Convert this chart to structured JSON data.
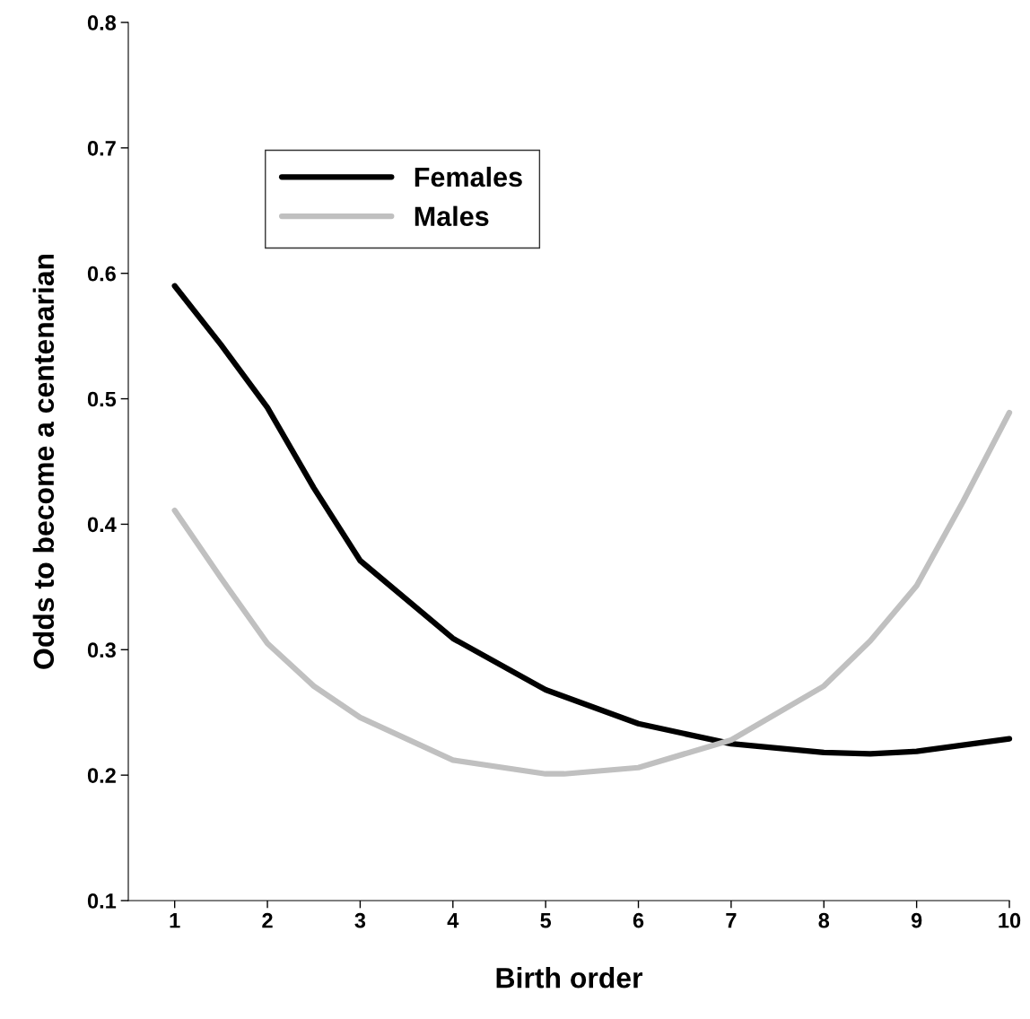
{
  "chart_data": {
    "type": "line",
    "xlabel": "Birth order",
    "ylabel": "Odds to become a centenarian",
    "xlim": [
      0.5,
      10
    ],
    "xticks": [
      1,
      2,
      3,
      4,
      5,
      6,
      7,
      8,
      9,
      10
    ],
    "ylim": [
      0.1,
      0.8
    ],
    "yticks": [
      0.1,
      0.2,
      0.3,
      0.4,
      0.5,
      0.6,
      0.7,
      0.8
    ],
    "grid": false,
    "legend": "top left",
    "marker": "none",
    "line_style": "solid",
    "series": [
      {
        "name": "Females",
        "color": "#000000",
        "x": [
          1,
          1.5,
          2,
          2.5,
          3,
          4,
          5,
          6,
          7,
          8,
          8.5,
          9,
          10
        ],
        "values": [
          0.59,
          0.543,
          0.493,
          0.429,
          0.371,
          0.309,
          0.268,
          0.241,
          0.225,
          0.218,
          0.217,
          0.219,
          0.229
        ]
      },
      {
        "name": "Males",
        "color": "#c0c0c0",
        "x": [
          1,
          1.5,
          2,
          2.5,
          3,
          4,
          5,
          5.2,
          6,
          7,
          8,
          8.5,
          9,
          9.5,
          10
        ],
        "values": [
          0.411,
          0.357,
          0.305,
          0.271,
          0.246,
          0.212,
          0.201,
          0.201,
          0.206,
          0.228,
          0.271,
          0.307,
          0.351,
          0.418,
          0.489
        ]
      }
    ]
  }
}
